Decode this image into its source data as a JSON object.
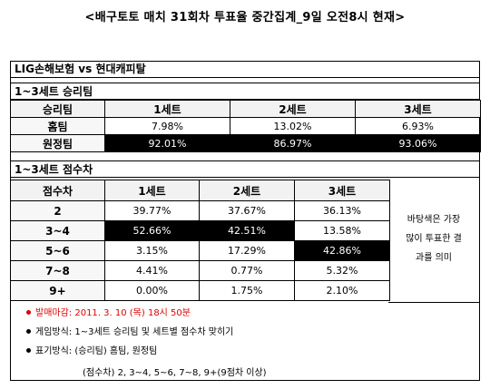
{
  "title": "<배구토토 매치 31회차 투표율 중간집계_9일 오전8시 현재>",
  "match": "LIG손해보험 vs 현대캐피탈",
  "section1": {
    "heading": "1~3세트 승리팀",
    "columns": [
      "승리팀",
      "1세트",
      "2세트",
      "3세트"
    ],
    "rows": [
      {
        "label": "홈팀",
        "values": [
          "7.98%",
          "13.02%",
          "6.93%"
        ]
      },
      {
        "label": "원정팀",
        "values": [
          "92.01%",
          "86.97%",
          "93.06%"
        ]
      }
    ]
  },
  "section2": {
    "heading": "1~3세트 점수차",
    "columns": [
      "점수차",
      "1세트",
      "2세트",
      "3세트"
    ],
    "rows": [
      {
        "label": "2",
        "values": [
          "39.77%",
          "37.67%",
          "36.13%"
        ]
      },
      {
        "label": "3~4",
        "values": [
          "52.66%",
          "42.51%",
          "13.58%"
        ]
      },
      {
        "label": "5~6",
        "values": [
          "3.15%",
          "17.29%",
          "42.86%"
        ]
      },
      {
        "label": "7~8",
        "values": [
          "4.41%",
          "0.77%",
          "5.32%"
        ]
      },
      {
        "label": "9+",
        "values": [
          "0.00%",
          "1.75%",
          "2.10%"
        ]
      }
    ],
    "note_lines": [
      "바탕색은 가장",
      "많이 투표한 결",
      "과를 의미"
    ]
  },
  "footnotes": {
    "deadline": "발매마감: 2011. 3. 10 (목) 18시  50분",
    "game_method": "게임방식: 1~3세트  승리팀 및 세트별 점수차 맞히기",
    "notation": "표기방식: (승리팀) 홈팀, 원정팀",
    "score_notation": "(점수차) 2, 3~4, 5~6, 7~8, 9+(9점차 이상)"
  },
  "colors": {
    "highlight": "#000000",
    "deadline": "#e00000"
  }
}
